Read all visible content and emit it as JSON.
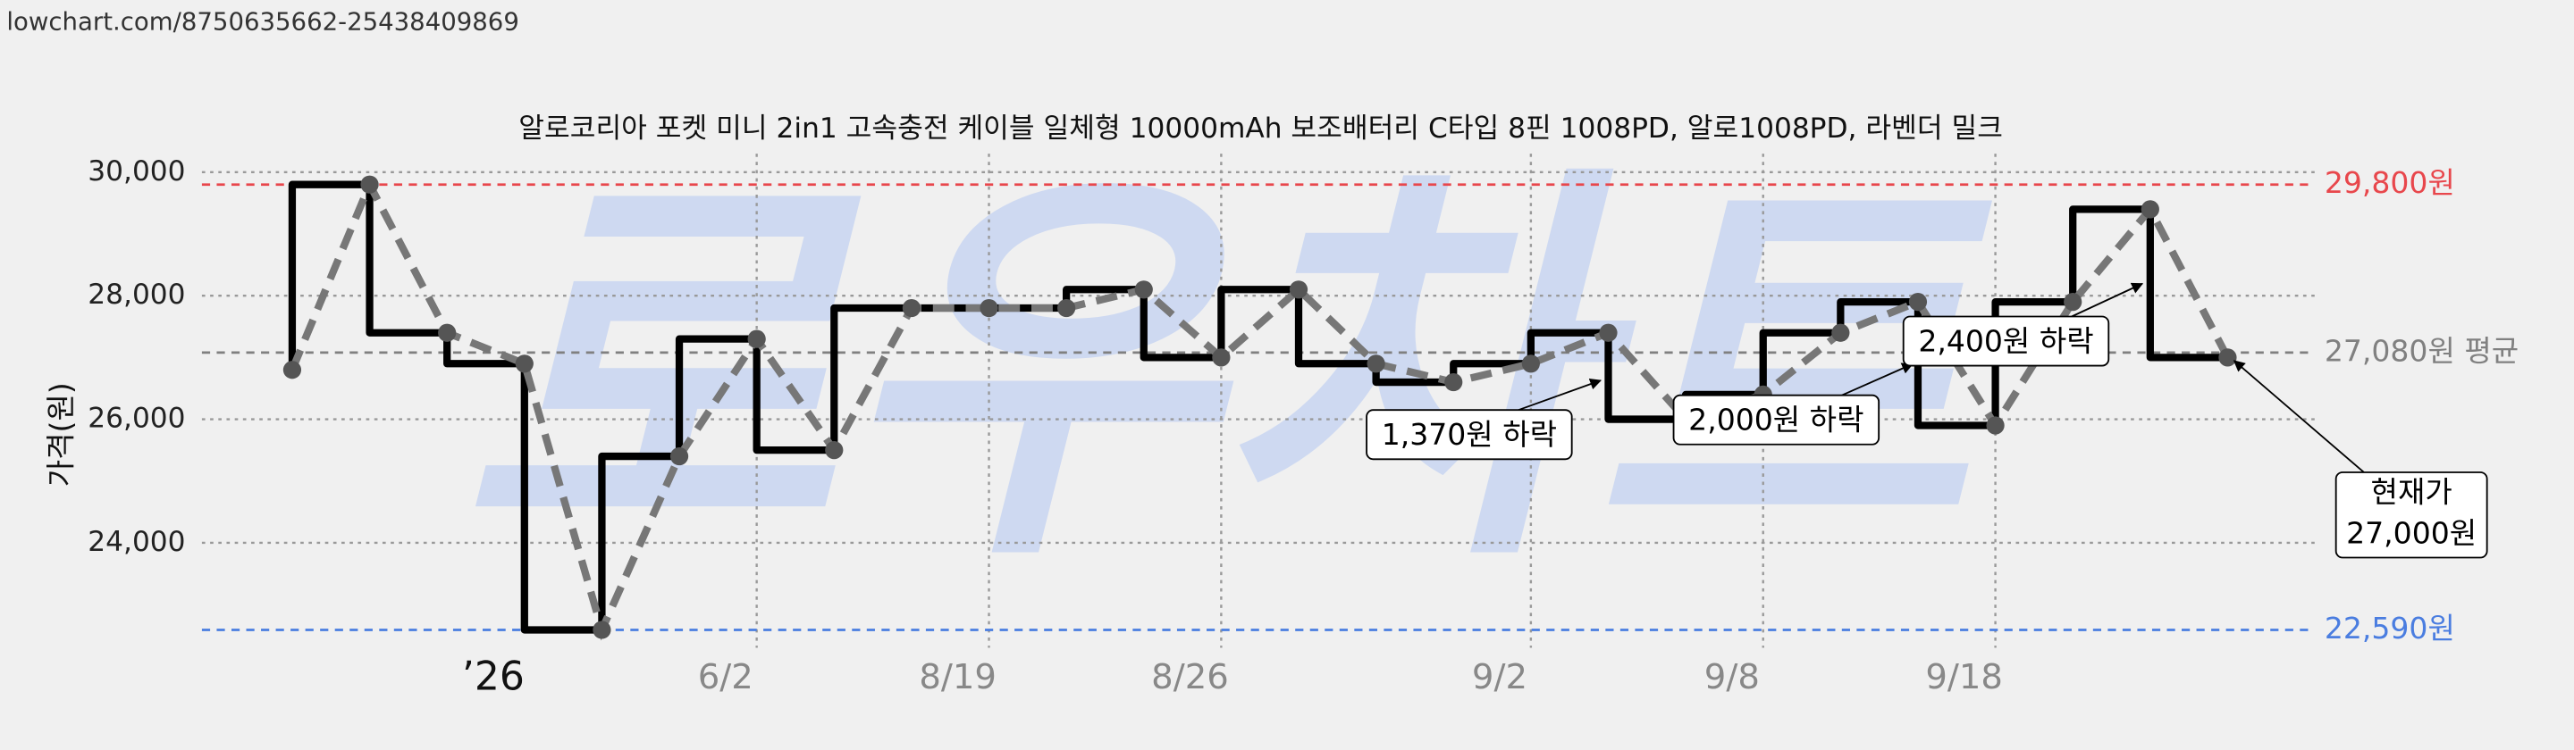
{
  "url": "lowchart.com/8750635662-25438409869",
  "watermark": "로우차트",
  "chart_data": {
    "type": "line",
    "title": "알로코리아 포켓 미니 2in1 고속충전 케이블 일체형 10000mAh 보조배터리 C타입 8핀 1008PD, 알로1008PD, 라벤더 밀크",
    "y_label": "가격(원)",
    "categories": [
      null,
      null,
      null,
      "’26",
      null,
      null,
      "6/2",
      null,
      null,
      "8/19",
      null,
      null,
      "8/26",
      null,
      null,
      null,
      "9/2",
      null,
      null,
      "9/8",
      null,
      null,
      "9/18",
      null,
      null,
      null
    ],
    "values": [
      26800,
      29800,
      27400,
      26900,
      22590,
      25400,
      27300,
      25500,
      27800,
      27800,
      27800,
      28100,
      27000,
      28100,
      26900,
      26600,
      26900,
      27400,
      26000,
      26400,
      27400,
      27900,
      25900,
      27900,
      29400,
      27000
    ],
    "color": "#777777",
    "step_color": "#000000",
    "ylim": [
      22300,
      30300
    ],
    "yticks": [
      {
        "value": 24000,
        "label": "24,000"
      },
      {
        "value": 26000,
        "label": "26,000"
      },
      {
        "value": 28000,
        "label": "28,000"
      },
      {
        "value": 30000,
        "label": "30,000"
      }
    ],
    "grid": true,
    "reference_lines": [
      {
        "value": 29800,
        "label": "29,800원",
        "color": "#e8474c"
      },
      {
        "value": 27080,
        "label": "27,080원 평균",
        "color": "#808080"
      },
      {
        "value": 22590,
        "label": "22,590원",
        "color": "#4a7de0"
      }
    ],
    "annotations": [
      "1,370원 하락",
      "2,000원 하락",
      "2,400원 하락"
    ],
    "current": [
      "현재가",
      "27,000원"
    ]
  }
}
